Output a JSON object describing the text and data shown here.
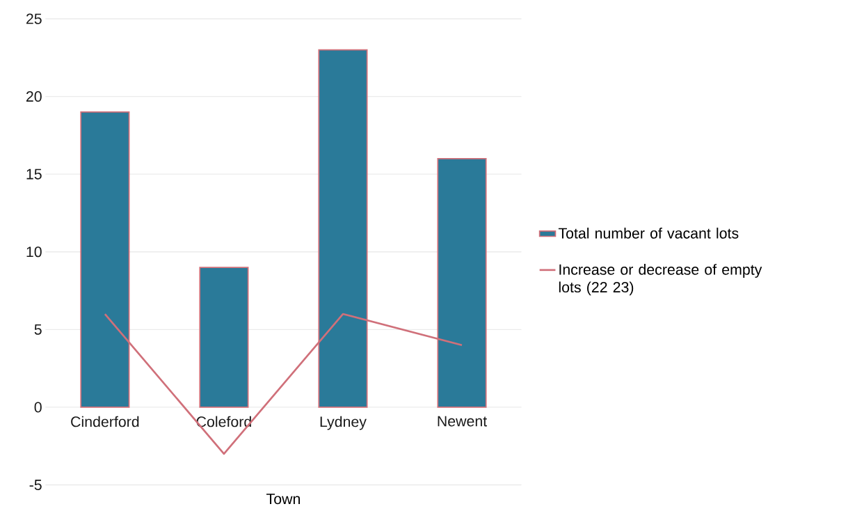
{
  "chart_data": {
    "type": "bar",
    "xlabel": "Town",
    "categories": [
      "Cinderford",
      "Coleford",
      "Lydney",
      "Newent"
    ],
    "series": [
      {
        "name": "Total number of vacant lots",
        "color": "#2a7a99",
        "values": [
          19,
          9,
          23,
          16
        ]
      },
      {
        "name": "Increase or decrease of empty lots (22 23)",
        "type": "line",
        "color": "#d0707a",
        "values": [
          6,
          -3,
          6,
          4
        ]
      }
    ],
    "ylim": [
      -5,
      25
    ],
    "yticks": [
      -5,
      0,
      5,
      10,
      15,
      20,
      25
    ],
    "grid": "y",
    "legend": "right"
  }
}
